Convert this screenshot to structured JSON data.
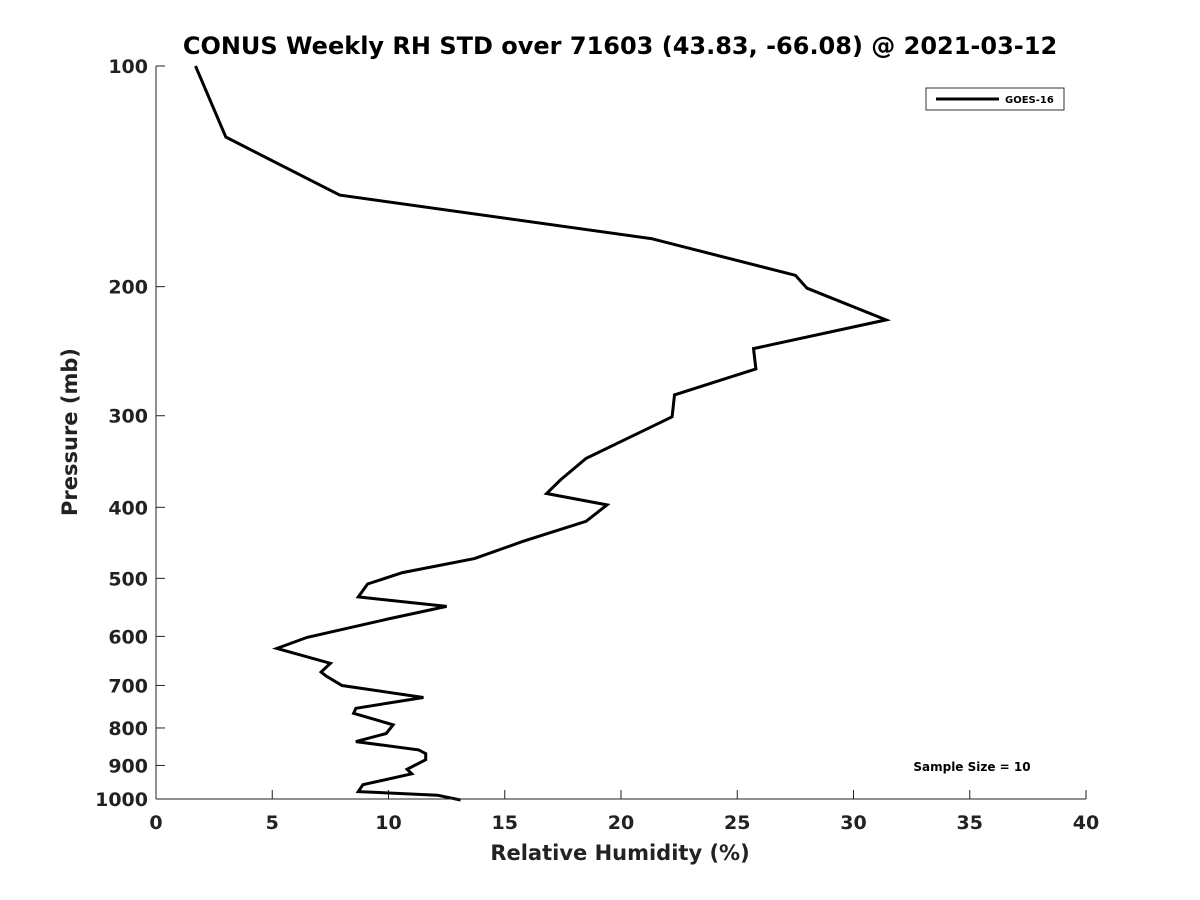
{
  "chart_data": {
    "type": "line",
    "title": "CONUS Weekly RH STD over 71603 (43.83, -66.08) @ 2021-03-12",
    "xlabel": "Relative Humidity (%)",
    "ylabel": "Pressure (mb)",
    "xlim": [
      0,
      40
    ],
    "ylim": [
      100,
      1000
    ],
    "y_scale": "log",
    "y_reversed": true,
    "x_ticks": [
      "0",
      "5",
      "10",
      "15",
      "20",
      "25",
      "30",
      "35",
      "40"
    ],
    "y_ticks": [
      "100",
      "200",
      "300",
      "400",
      "500",
      "600",
      "700",
      "800",
      "900",
      "1000"
    ],
    "grid": false,
    "legend_position": "top-right",
    "annotation": "Sample Size = 10",
    "series": [
      {
        "name": "GOES-16",
        "color": "#000000",
        "x": [
          1.7,
          3.0,
          7.9,
          21.3,
          27.5,
          28.0,
          31.4,
          25.7,
          25.8,
          22.3,
          22.2,
          18.5,
          17.4,
          16.8,
          19.4,
          18.5,
          15.8,
          13.7,
          10.6,
          9.1,
          8.7,
          12.5,
          10.0,
          6.5,
          5.2,
          7.5,
          7.1,
          7.3,
          8.0,
          11.5,
          8.6,
          8.5,
          10.2,
          9.9,
          8.6,
          11.3,
          11.6,
          11.6,
          10.8,
          11.0,
          8.9,
          8.7,
          12.1,
          13.1
        ],
        "y": [
          100,
          125,
          150,
          172,
          193,
          201,
          222,
          243,
          259,
          281,
          301,
          343,
          367,
          383,
          397,
          418,
          445,
          470,
          491,
          509,
          530,
          546,
          568,
          602,
          623,
          653,
          671,
          679,
          700,
          727,
          752,
          764,
          792,
          814,
          835,
          857,
          867,
          884,
          911,
          924,
          956,
          977,
          988,
          1003
        ]
      }
    ]
  }
}
